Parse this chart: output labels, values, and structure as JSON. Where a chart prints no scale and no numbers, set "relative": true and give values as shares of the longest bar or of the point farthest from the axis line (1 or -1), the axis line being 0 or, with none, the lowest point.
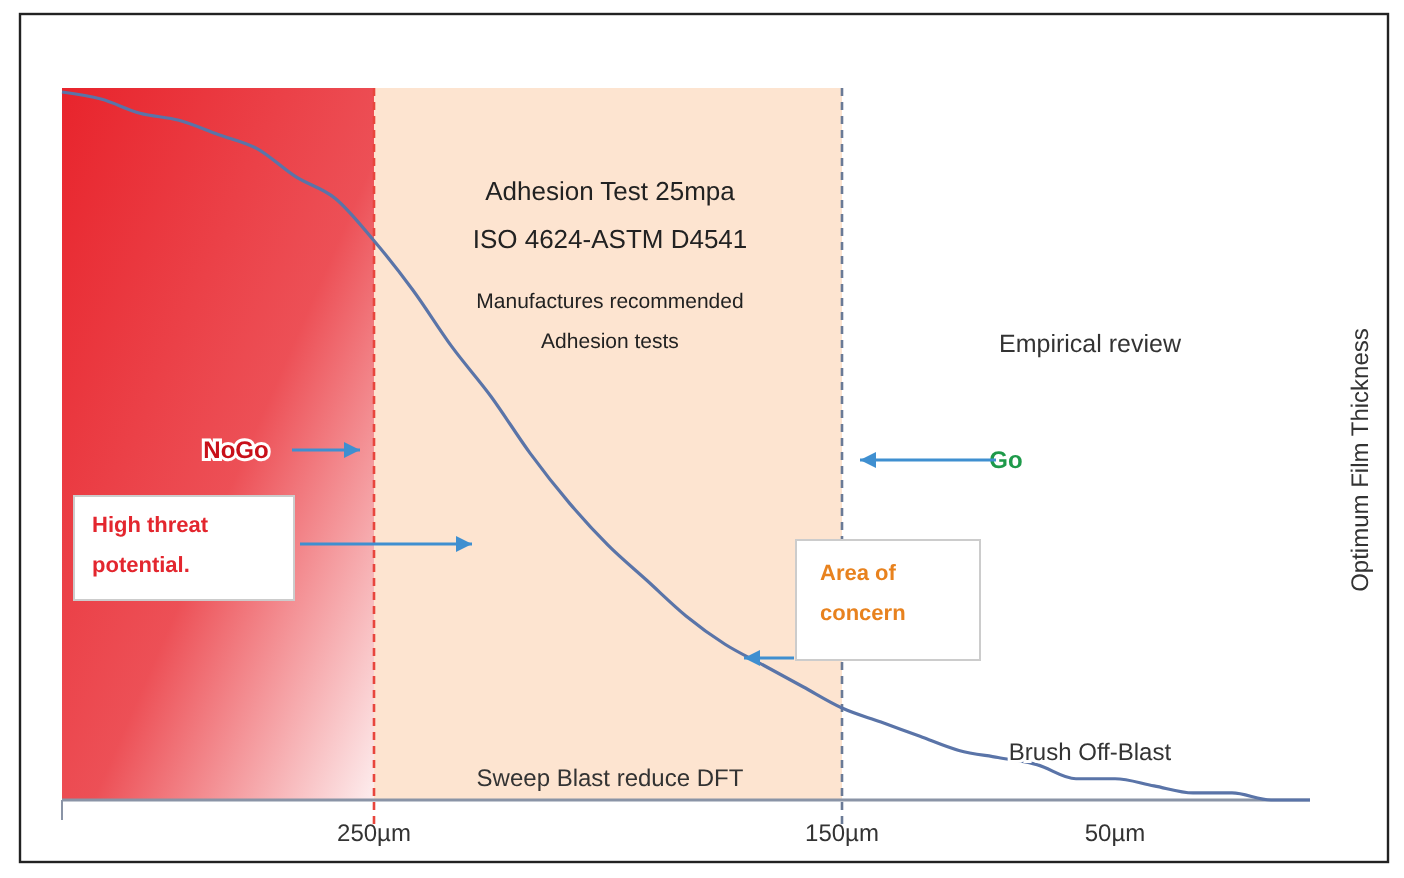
{
  "chart_data": {
    "type": "line",
    "relative": true,
    "categories": [
      null,
      null,
      null,
      null,
      null,
      null,
      null,
      null,
      "250µm",
      null,
      null,
      null,
      null,
      null,
      null,
      null,
      null,
      null,
      null,
      null,
      "150µm",
      null,
      null,
      null,
      null,
      null,
      null,
      "50µm",
      null,
      null,
      null,
      null,
      null
    ],
    "series": [
      {
        "color": "#5a74a8",
        "values": [
          1.0,
          0.99,
          0.97,
          0.96,
          0.94,
          0.92,
          0.88,
          0.85,
          0.79,
          0.72,
          0.64,
          0.57,
          0.49,
          0.42,
          0.36,
          0.31,
          0.26,
          0.22,
          0.19,
          0.16,
          0.13,
          0.11,
          0.09,
          0.07,
          0.06,
          0.05,
          0.03,
          0.03,
          0.02,
          0.01,
          0.01,
          0,
          0
        ]
      }
    ],
    "ylabel": "Optimum Film Thickness",
    "bands": [
      {
        "axis": "x",
        "from": "250µm",
        "to": "150µm",
        "color": "#fde4d0"
      }
    ],
    "ref_lines": [
      {
        "axis": "x",
        "value": "250µm",
        "color": "#e8453c",
        "line_style": "dashed"
      },
      {
        "axis": "x",
        "value": "150µm",
        "color": "#6a7a96",
        "line_style": "dashed"
      }
    ],
    "annotations": [
      "Adhesion Test 25mpa",
      "ISO 4624-ASTM D4541",
      "Manufactures recommended",
      "Adhesion tests",
      "Empirical review",
      "NoGo",
      "Go",
      "High threat potential.",
      "Area of concern",
      "Sweep Blast reduce DFT",
      "Brush Off-Blast"
    ]
  }
}
